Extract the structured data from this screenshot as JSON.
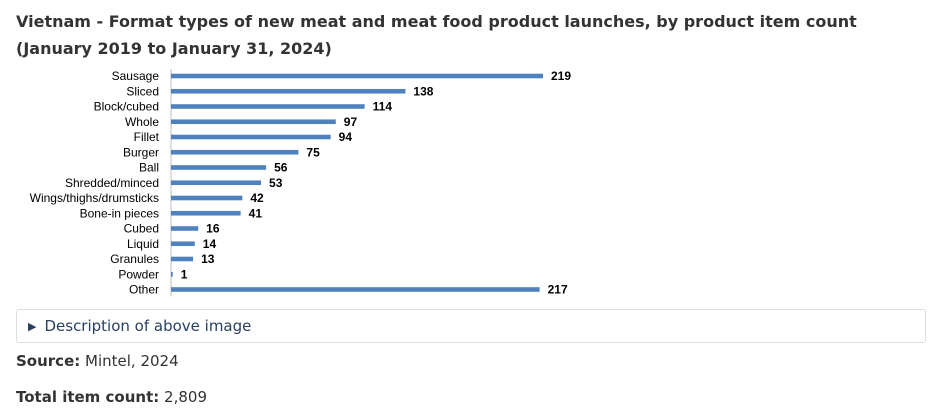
{
  "title": "Vietnam - Format types of new meat and meat food product launches, by product item count (January 2019 to January 31, 2024)",
  "chart_data": {
    "type": "bar",
    "orientation": "horizontal",
    "categories": [
      "Sausage",
      "Sliced",
      "Block/cubed",
      "Whole",
      "Fillet",
      "Burger",
      "Ball",
      "Shredded/minced",
      "Wings/thighs/drumsticks",
      "Bone-in pieces",
      "Cubed",
      "Liquid",
      "Granules",
      "Powder",
      "Other"
    ],
    "values": [
      219,
      138,
      114,
      97,
      94,
      75,
      56,
      53,
      42,
      41,
      16,
      14,
      13,
      1,
      217
    ],
    "bar_color": "#4f81bd",
    "grid": false,
    "legend": "none",
    "data_labels": true
  },
  "details": {
    "summary_label": "Description of above image",
    "icon": "triangle-right-icon"
  },
  "source": {
    "label": "Source:",
    "value": "Mintel, 2024"
  },
  "total": {
    "label": "Total item count:",
    "value": "2,809"
  }
}
